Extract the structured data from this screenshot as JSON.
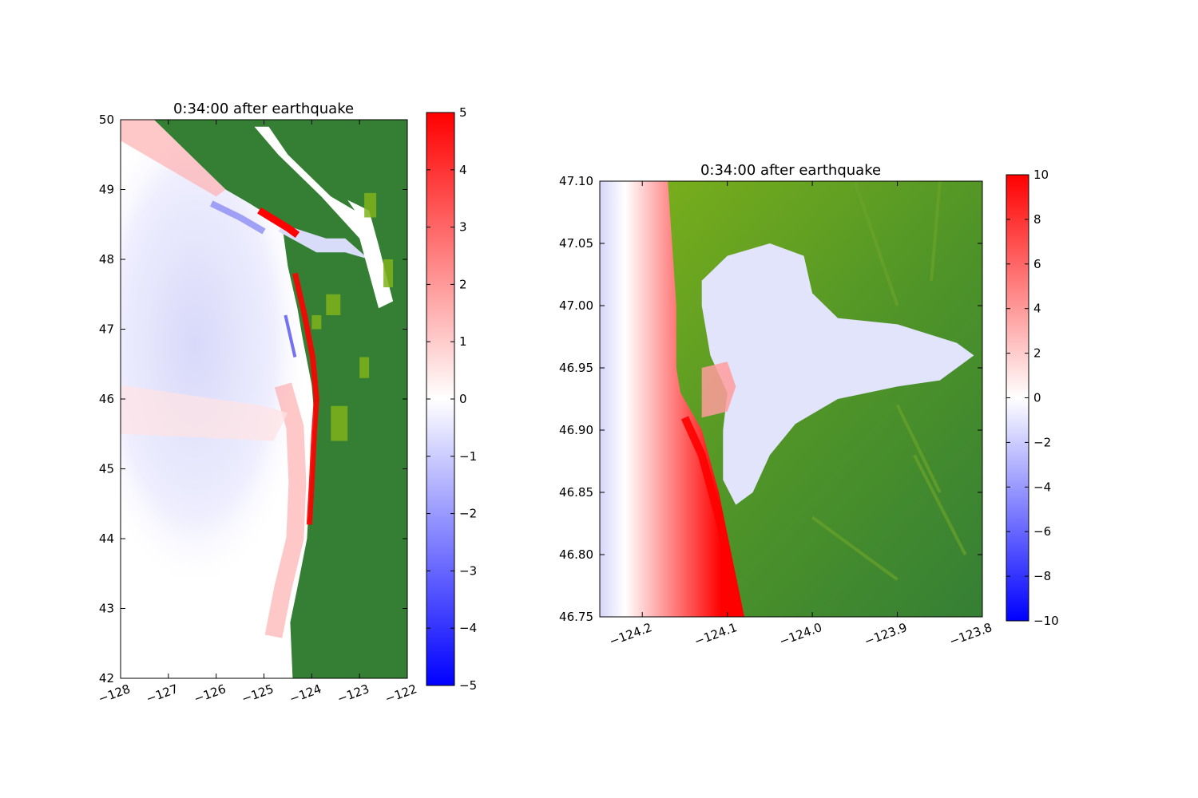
{
  "figure": {
    "background": "#ffffff"
  },
  "colors": {
    "land_dark": "#357f35",
    "land_light": "#7fb21a",
    "water_zero": "#ffffff",
    "positive": "#ff0000",
    "negative": "#0000ff",
    "dry_land_white": "#ffffff"
  },
  "chart_data": [
    {
      "type": "heatmap",
      "title": "0:34:00 after earthquake",
      "xlabel": "",
      "ylabel": "",
      "xlim": [
        -128,
        -122
      ],
      "ylim": [
        42,
        50
      ],
      "x_ticks": [
        "−128",
        "−127",
        "−126",
        "−125",
        "−124",
        "−123",
        "−122"
      ],
      "x_tick_values": [
        -128,
        -127,
        -126,
        -125,
        -124,
        -123,
        -122
      ],
      "x_tick_rotation_deg": -20,
      "y_ticks": [
        "42",
        "43",
        "44",
        "45",
        "46",
        "47",
        "48",
        "49",
        "50"
      ],
      "y_tick_values": [
        42,
        43,
        44,
        45,
        46,
        47,
        48,
        49,
        50
      ],
      "colorbar": {
        "range": [
          -5,
          5
        ],
        "ticks": [
          "−5",
          "−4",
          "−3",
          "−2",
          "−1",
          "0",
          "1",
          "2",
          "3",
          "4",
          "5"
        ],
        "tick_values": [
          -5,
          -4,
          -3,
          -2,
          -1,
          0,
          1,
          2,
          3,
          4,
          5
        ],
        "colormap": "blue-white-red"
      },
      "coastline": [
        [
          -124.7,
          50
        ],
        [
          -124.7,
          48.6
        ],
        [
          -124.6,
          48.4
        ],
        [
          -124.5,
          47.9
        ],
        [
          -124.3,
          47.3
        ],
        [
          -124.2,
          46.9
        ],
        [
          -124.0,
          46.2
        ],
        [
          -123.95,
          45.8
        ],
        [
          -124.0,
          45.2
        ],
        [
          -124.05,
          44.6
        ],
        [
          -124.1,
          44.0
        ],
        [
          -124.3,
          43.3
        ],
        [
          -124.45,
          42.8
        ],
        [
          -124.4,
          42.0
        ]
      ],
      "strait_north_shore": [
        [
          -127.3,
          50
        ],
        [
          -125.8,
          49.0
        ],
        [
          -125.3,
          48.8
        ],
        [
          -124.6,
          48.5
        ],
        [
          -123.7,
          48.3
        ],
        [
          -123.3,
          48.3
        ]
      ],
      "strait_south_shore": [
        [
          -124.7,
          48.4
        ],
        [
          -123.9,
          48.1
        ],
        [
          -123.3,
          48.1
        ],
        [
          -122.8,
          48.0
        ]
      ]
    },
    {
      "type": "heatmap",
      "title": "0:34:00 after earthquake",
      "xlabel": "",
      "ylabel": "",
      "xlim": [
        -124.25,
        -123.8
      ],
      "ylim": [
        46.75,
        47.1
      ],
      "x_ticks": [
        "−124.2",
        "−124.1",
        "−124.0",
        "−123.9",
        "−123.8"
      ],
      "x_tick_values": [
        -124.2,
        -124.1,
        -124.0,
        -123.9,
        -123.8
      ],
      "x_tick_rotation_deg": -20,
      "y_ticks": [
        "46.75",
        "46.80",
        "46.85",
        "46.90",
        "46.95",
        "47.00",
        "47.05",
        "47.10"
      ],
      "y_tick_values": [
        46.75,
        46.8,
        46.85,
        46.9,
        46.95,
        47.0,
        47.05,
        47.1
      ],
      "colorbar": {
        "range": [
          -10,
          10
        ],
        "ticks": [
          "−10",
          "−8",
          "−6",
          "−4",
          "−2",
          "0",
          "2",
          "4",
          "6",
          "8",
          "10"
        ],
        "tick_values": [
          -10,
          -8,
          -6,
          -4,
          -2,
          0,
          2,
          4,
          6,
          8,
          10
        ],
        "colormap": "blue-white-red"
      },
      "coastline": [
        [
          -124.17,
          47.1
        ],
        [
          -124.165,
          47.05
        ],
        [
          -124.16,
          47.0
        ],
        [
          -124.16,
          46.95
        ],
        [
          -124.155,
          46.93
        ],
        [
          -124.13,
          46.9
        ],
        [
          -124.11,
          46.85
        ],
        [
          -124.095,
          46.8
        ],
        [
          -124.08,
          46.75
        ]
      ],
      "bay_outline": [
        [
          -124.13,
          47.02
        ],
        [
          -124.1,
          47.04
        ],
        [
          -124.05,
          47.05
        ],
        [
          -124.01,
          47.04
        ],
        [
          -124.0,
          47.01
        ],
        [
          -123.97,
          46.99
        ],
        [
          -123.9,
          46.985
        ],
        [
          -123.83,
          46.97
        ],
        [
          -123.81,
          46.96
        ],
        [
          -123.85,
          46.94
        ],
        [
          -123.9,
          46.935
        ],
        [
          -123.97,
          46.925
        ],
        [
          -124.02,
          46.905
        ],
        [
          -124.05,
          46.88
        ],
        [
          -124.07,
          46.85
        ],
        [
          -124.09,
          46.84
        ],
        [
          -124.105,
          46.86
        ],
        [
          -124.105,
          46.9
        ],
        [
          -124.1,
          46.93
        ],
        [
          -124.12,
          46.96
        ],
        [
          -124.13,
          47.0
        ]
      ],
      "wave_front": {
        "lon_at_top": -124.17,
        "lon_at_bottom": -124.12,
        "peak": 10
      },
      "trough": {
        "lon_at_top": -124.25,
        "lon_at_bottom": -124.23,
        "peak": -4
      }
    }
  ]
}
